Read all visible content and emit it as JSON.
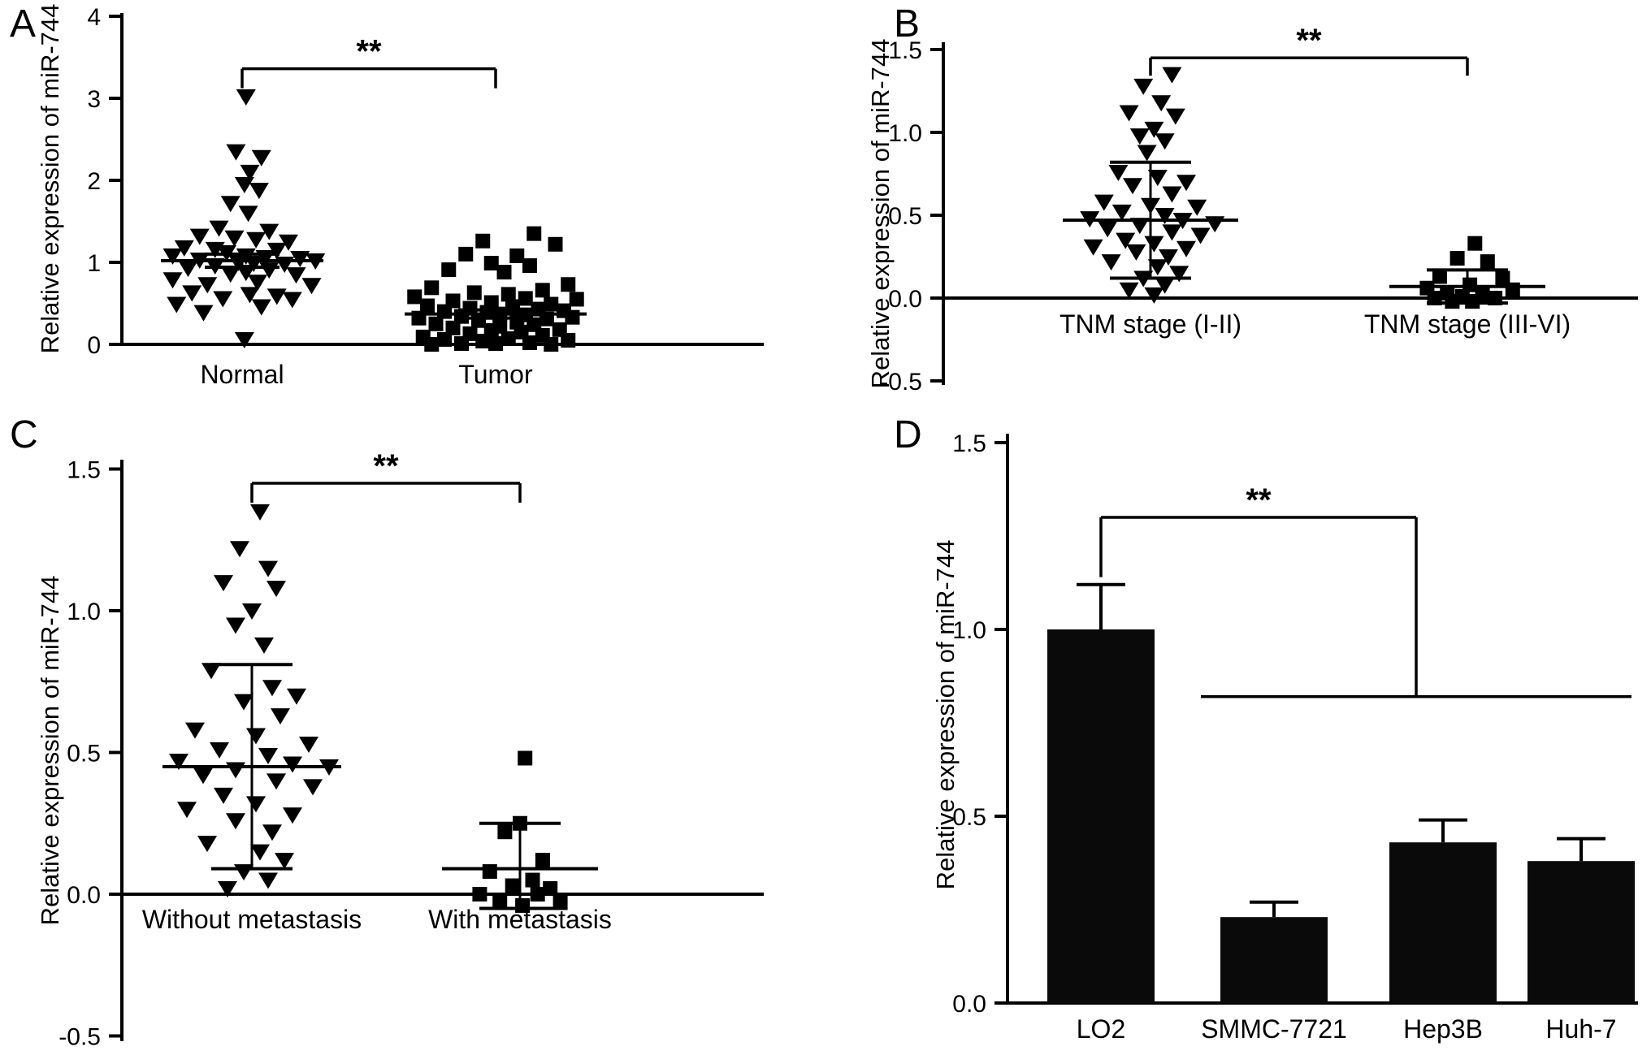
{
  "figure": {
    "background": "#ffffff",
    "ink": "#000000"
  },
  "chart_data": [
    {
      "panel": "A",
      "type": "scatter",
      "ylabel": "Relative expression of miR-744",
      "ylim": [
        0,
        4
      ],
      "yticks": [
        {
          "v": 0,
          "label": "0"
        },
        {
          "v": 1,
          "label": "1"
        },
        {
          "v": 2,
          "label": "2"
        },
        {
          "v": 3,
          "label": "3"
        },
        {
          "v": 4,
          "label": "4"
        }
      ],
      "significance": {
        "label": "**",
        "y": 3.36
      },
      "groups": [
        {
          "name": "Normal",
          "marker": "triangle-down",
          "mean": 1.02,
          "err_top": 1.1,
          "err_bottom": 0.94,
          "points": [
            [
              0.05,
              3.02
            ],
            [
              -0.08,
              2.35
            ],
            [
              0.25,
              2.28
            ],
            [
              0.1,
              2.1
            ],
            [
              0.03,
              1.95
            ],
            [
              0.22,
              1.88
            ],
            [
              -0.15,
              1.72
            ],
            [
              0.08,
              1.6
            ],
            [
              -0.3,
              1.42
            ],
            [
              0.35,
              1.38
            ],
            [
              -0.55,
              1.32
            ],
            [
              -0.1,
              1.3
            ],
            [
              0.18,
              1.28
            ],
            [
              0.6,
              1.25
            ],
            [
              -0.75,
              1.18
            ],
            [
              -0.35,
              1.16
            ],
            [
              0.45,
              1.15
            ],
            [
              -0.2,
              1.12
            ],
            [
              -0.9,
              1.08
            ],
            [
              0.05,
              1.08
            ],
            [
              0.3,
              1.06
            ],
            [
              0.75,
              1.05
            ],
            [
              -0.55,
              1.03
            ],
            [
              0.95,
              1.02
            ],
            [
              -0.05,
              1.0
            ],
            [
              0.15,
              0.99
            ],
            [
              0.55,
              0.98
            ],
            [
              -0.35,
              0.96
            ],
            [
              -0.7,
              0.93
            ],
            [
              0.35,
              0.91
            ],
            [
              0.05,
              0.88
            ],
            [
              -0.15,
              0.86
            ],
            [
              0.7,
              0.85
            ],
            [
              -0.9,
              0.79
            ],
            [
              0.2,
              0.76
            ],
            [
              -0.45,
              0.73
            ],
            [
              0.9,
              0.72
            ],
            [
              -0.65,
              0.63
            ],
            [
              0.1,
              0.61
            ],
            [
              0.45,
              0.59
            ],
            [
              -0.25,
              0.56
            ],
            [
              0.65,
              0.55
            ],
            [
              -0.85,
              0.49
            ],
            [
              0.25,
              0.46
            ],
            [
              -0.5,
              0.39
            ],
            [
              0.03,
              0.06
            ]
          ]
        },
        {
          "name": "Tumor",
          "marker": "square",
          "mean": 0.37,
          "err_top": 0.42,
          "err_bottom": 0.32,
          "points": [
            [
              0.45,
              1.35
            ],
            [
              -0.15,
              1.26
            ],
            [
              0.7,
              1.22
            ],
            [
              -0.35,
              1.1
            ],
            [
              0.25,
              1.08
            ],
            [
              -0.05,
              0.99
            ],
            [
              0.4,
              0.96
            ],
            [
              -0.55,
              0.91
            ],
            [
              0.1,
              0.88
            ],
            [
              0.85,
              0.73
            ],
            [
              -0.75,
              0.69
            ],
            [
              0.55,
              0.66
            ],
            [
              -0.25,
              0.63
            ],
            [
              0.15,
              0.61
            ],
            [
              -0.95,
              0.58
            ],
            [
              0.35,
              0.56
            ],
            [
              0.95,
              0.55
            ],
            [
              -0.5,
              0.53
            ],
            [
              -0.05,
              0.51
            ],
            [
              0.65,
              0.49
            ],
            [
              -0.8,
              0.47
            ],
            [
              0.2,
              0.46
            ],
            [
              -0.3,
              0.44
            ],
            [
              0.5,
              0.43
            ],
            [
              0.8,
              0.41
            ],
            [
              -0.6,
              0.4
            ],
            [
              -0.1,
              0.39
            ],
            [
              0.05,
              0.37
            ],
            [
              0.35,
              0.36
            ],
            [
              -0.4,
              0.34
            ],
            [
              0.9,
              0.33
            ],
            [
              -0.9,
              0.32
            ],
            [
              0.6,
              0.31
            ],
            [
              -0.2,
              0.29
            ],
            [
              0.25,
              0.27
            ],
            [
              -0.7,
              0.25
            ],
            [
              0.45,
              0.24
            ],
            [
              0.05,
              0.22
            ],
            [
              -0.5,
              0.2
            ],
            [
              0.75,
              0.18
            ],
            [
              -0.05,
              0.17
            ],
            [
              0.3,
              0.15
            ],
            [
              -0.3,
              0.13
            ],
            [
              0.55,
              0.11
            ],
            [
              -0.85,
              0.09
            ],
            [
              0.15,
              0.07
            ],
            [
              -0.6,
              0.06
            ],
            [
              0.85,
              0.05
            ],
            [
              -0.15,
              0.04
            ],
            [
              0.4,
              0.02
            ],
            [
              0.0,
              0.01
            ],
            [
              -0.4,
              0.01
            ],
            [
              0.65,
              0.0
            ],
            [
              -0.75,
              0.0
            ]
          ]
        }
      ]
    },
    {
      "panel": "B",
      "type": "scatter",
      "ylabel": "Relative expression of miR-744",
      "ylim": [
        -0.5,
        1.5
      ],
      "yticks": [
        {
          "v": -0.5,
          "label": "-0.5"
        },
        {
          "v": 0,
          "label": "0.0"
        },
        {
          "v": 0.5,
          "label": "0.5"
        },
        {
          "v": 1,
          "label": "1.0"
        },
        {
          "v": 1.5,
          "label": "1.5"
        }
      ],
      "significance": {
        "label": "**",
        "y": 1.45
      },
      "groups": [
        {
          "name": "TNM stage (I-II)",
          "marker": "triangle-down",
          "mean": 0.47,
          "err_top": 0.82,
          "err_bottom": 0.12,
          "points": [
            [
              0.3,
              1.35
            ],
            [
              -0.1,
              1.28
            ],
            [
              0.15,
              1.18
            ],
            [
              -0.3,
              1.12
            ],
            [
              0.35,
              1.1
            ],
            [
              0.05,
              1.02
            ],
            [
              -0.15,
              0.98
            ],
            [
              0.2,
              0.95
            ],
            [
              -0.05,
              0.88
            ],
            [
              -0.45,
              0.76
            ],
            [
              0.1,
              0.73
            ],
            [
              0.5,
              0.7
            ],
            [
              -0.25,
              0.68
            ],
            [
              0.3,
              0.63
            ],
            [
              -0.65,
              0.58
            ],
            [
              0.0,
              0.56
            ],
            [
              0.65,
              0.55
            ],
            [
              -0.4,
              0.52
            ],
            [
              0.2,
              0.5
            ],
            [
              -0.85,
              0.48
            ],
            [
              0.45,
              0.47
            ],
            [
              0.9,
              0.45
            ],
            [
              -0.15,
              0.44
            ],
            [
              -0.6,
              0.42
            ],
            [
              0.3,
              0.4
            ],
            [
              0.7,
              0.38
            ],
            [
              -0.35,
              0.35
            ],
            [
              0.05,
              0.33
            ],
            [
              -0.8,
              0.31
            ],
            [
              0.5,
              0.3
            ],
            [
              -0.2,
              0.28
            ],
            [
              0.25,
              0.25
            ],
            [
              -0.55,
              0.22
            ],
            [
              0.1,
              0.19
            ],
            [
              0.4,
              0.15
            ],
            [
              -0.1,
              0.12
            ],
            [
              0.2,
              0.08
            ],
            [
              -0.3,
              0.05
            ],
            [
              0.05,
              0.02
            ]
          ]
        },
        {
          "name": "TNM stage (III-VI)",
          "marker": "square",
          "mean": 0.07,
          "err_top": 0.17,
          "err_bottom": -0.03,
          "points": [
            [
              0.15,
              0.33
            ],
            [
              -0.2,
              0.24
            ],
            [
              0.4,
              0.22
            ],
            [
              -0.55,
              0.13
            ],
            [
              0.7,
              0.12
            ],
            [
              0.05,
              0.08
            ],
            [
              -0.8,
              0.06
            ],
            [
              0.9,
              0.05
            ],
            [
              -0.4,
              0.03
            ],
            [
              0.3,
              0.02
            ],
            [
              -0.1,
              0.01
            ],
            [
              0.55,
              0.0
            ],
            [
              -0.65,
              0.0
            ],
            [
              0.1,
              -0.02
            ],
            [
              -0.3,
              -0.02
            ]
          ]
        }
      ]
    },
    {
      "panel": "C",
      "type": "scatter",
      "ylabel": "Relative expression of miR-744",
      "ylim": [
        -0.5,
        1.5
      ],
      "yticks": [
        {
          "v": -0.5,
          "label": "-0.5"
        },
        {
          "v": 0,
          "label": "0.0"
        },
        {
          "v": 0.5,
          "label": "0.5"
        },
        {
          "v": 1,
          "label": "1.0"
        },
        {
          "v": 1.5,
          "label": "1.5"
        }
      ],
      "significance": {
        "label": "**",
        "y": 1.45
      },
      "groups": [
        {
          "name": "Without metastasis",
          "marker": "triangle-down",
          "mean": 0.45,
          "err_top": 0.81,
          "err_bottom": 0.09,
          "points": [
            [
              0.1,
              1.35
            ],
            [
              -0.15,
              1.22
            ],
            [
              0.2,
              1.15
            ],
            [
              -0.35,
              1.1
            ],
            [
              0.3,
              1.08
            ],
            [
              0.0,
              1.0
            ],
            [
              -0.2,
              0.95
            ],
            [
              0.15,
              0.88
            ],
            [
              -0.5,
              0.79
            ],
            [
              0.25,
              0.73
            ],
            [
              0.55,
              0.7
            ],
            [
              -0.1,
              0.68
            ],
            [
              0.35,
              0.63
            ],
            [
              -0.7,
              0.58
            ],
            [
              0.05,
              0.56
            ],
            [
              0.7,
              0.53
            ],
            [
              -0.4,
              0.51
            ],
            [
              0.2,
              0.49
            ],
            [
              -0.9,
              0.47
            ],
            [
              0.5,
              0.46
            ],
            [
              0.95,
              0.45
            ],
            [
              -0.2,
              0.44
            ],
            [
              -0.6,
              0.42
            ],
            [
              0.3,
              0.4
            ],
            [
              0.75,
              0.38
            ],
            [
              -0.35,
              0.35
            ],
            [
              0.05,
              0.32
            ],
            [
              -0.8,
              0.3
            ],
            [
              0.5,
              0.28
            ],
            [
              -0.2,
              0.26
            ],
            [
              0.25,
              0.22
            ],
            [
              -0.55,
              0.18
            ],
            [
              0.1,
              0.15
            ],
            [
              0.4,
              0.12
            ],
            [
              -0.1,
              0.08
            ],
            [
              0.2,
              0.05
            ],
            [
              -0.3,
              0.02
            ]
          ]
        },
        {
          "name": "With metastasis",
          "marker": "square",
          "mean": 0.09,
          "err_top": 0.25,
          "err_bottom": -0.05,
          "points": [
            [
              0.1,
              0.48
            ],
            [
              0.0,
              0.25
            ],
            [
              -0.3,
              0.22
            ],
            [
              0.45,
              0.12
            ],
            [
              -0.6,
              0.08
            ],
            [
              0.25,
              0.05
            ],
            [
              -0.15,
              0.03
            ],
            [
              0.6,
              0.02
            ],
            [
              -0.8,
              0.0
            ],
            [
              0.35,
              0.0
            ],
            [
              -0.4,
              -0.02
            ],
            [
              0.8,
              -0.03
            ],
            [
              0.05,
              -0.04
            ]
          ]
        }
      ]
    },
    {
      "panel": "D",
      "type": "bar",
      "ylabel": "Relative expression of miR-744",
      "ylim": [
        0,
        1.5
      ],
      "yticks": [
        {
          "v": 0,
          "label": "0.0"
        },
        {
          "v": 0.5,
          "label": "0.5"
        },
        {
          "v": 1,
          "label": "1.0"
        },
        {
          "v": 1.5,
          "label": "1.5"
        }
      ],
      "categories": [
        "LO2",
        "SMMC-7721",
        "Hep3B",
        "Huh-7"
      ],
      "values": [
        1.0,
        0.23,
        0.43,
        0.38
      ],
      "errors": [
        0.12,
        0.04,
        0.06,
        0.06
      ],
      "bar_color": "#0a0a0a",
      "significance": {
        "label": "**",
        "top_y": 1.3,
        "drop_to": 1.14,
        "lower_y": 0.82
      }
    }
  ]
}
